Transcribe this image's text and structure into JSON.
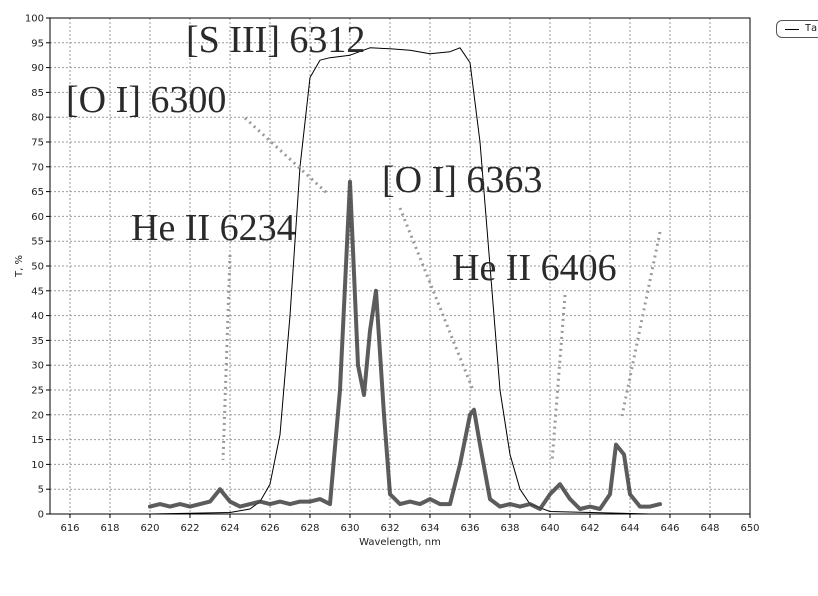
{
  "chart_data": {
    "type": "line",
    "title": "",
    "xlabel": "Wavelength, nm",
    "ylabel": "T, %",
    "xlim": [
      615,
      650
    ],
    "ylim": [
      0,
      100
    ],
    "x_ticks": [
      616,
      618,
      620,
      622,
      624,
      626,
      628,
      630,
      632,
      634,
      636,
      638,
      640,
      642,
      644,
      646,
      648,
      650
    ],
    "y_ticks": [
      0,
      5,
      10,
      15,
      20,
      25,
      30,
      35,
      40,
      45,
      50,
      55,
      60,
      65,
      70,
      75,
      80,
      85,
      90,
      95,
      100
    ],
    "grid": true,
    "legend": {
      "position": "top-right",
      "entries": [
        "Ta"
      ]
    },
    "series": [
      {
        "name": "Ta",
        "color": "#000000",
        "x": [
          615,
          620,
          624,
          625,
          625.5,
          626,
          626.5,
          627,
          627.5,
          628,
          628.5,
          629,
          630,
          631,
          632,
          633,
          634,
          635,
          635.5,
          636,
          636.5,
          637,
          637.5,
          638,
          638.5,
          639,
          640,
          645,
          650
        ],
        "y": [
          0,
          0,
          0.3,
          1,
          2.5,
          6,
          16,
          40,
          70,
          88,
          91.5,
          92,
          92.5,
          94,
          93.8,
          93.5,
          92.8,
          93.2,
          94,
          91,
          75,
          50,
          25,
          12,
          5,
          2,
          0.5,
          0,
          0
        ]
      },
      {
        "color": "#404040",
        "x": [
          620,
          620.5,
          621,
          621.5,
          622,
          622.5,
          623,
          623.5,
          624,
          624.5,
          625,
          625.5,
          626,
          626.5,
          627,
          627.5,
          628,
          628.5,
          629,
          629.5,
          630,
          630.4,
          630.7,
          631,
          631.3,
          631.7,
          632,
          632.5,
          633,
          633.5,
          634,
          634.5,
          635,
          635.5,
          636,
          636.2,
          636.5,
          637,
          637.5,
          638,
          638.5,
          639,
          639.5,
          640,
          640.5,
          641,
          641.5,
          642,
          642.5,
          643,
          643.3,
          643.7,
          644,
          644.5,
          645,
          645.5
        ],
        "y": [
          1.5,
          2,
          1.5,
          2,
          1.5,
          2,
          2.5,
          5,
          2.5,
          1.5,
          2,
          2.5,
          2,
          2.5,
          2,
          2.5,
          2.5,
          3,
          2,
          25,
          67,
          30,
          24,
          37,
          45,
          20,
          4,
          2,
          2.5,
          2,
          3,
          2,
          2,
          10,
          20,
          21,
          14,
          3,
          1.5,
          2,
          1.5,
          2,
          1,
          4,
          6,
          3,
          1,
          1.5,
          1,
          4,
          14,
          12,
          4,
          1.5,
          1.5,
          2
        ]
      }
    ],
    "annotations": [
      {
        "text": "[S III] 6312"
      },
      {
        "text": "[O I] 6300"
      },
      {
        "text": "[O I] 6363"
      },
      {
        "text": "He II 6234"
      },
      {
        "text": "He II 6406"
      }
    ]
  }
}
